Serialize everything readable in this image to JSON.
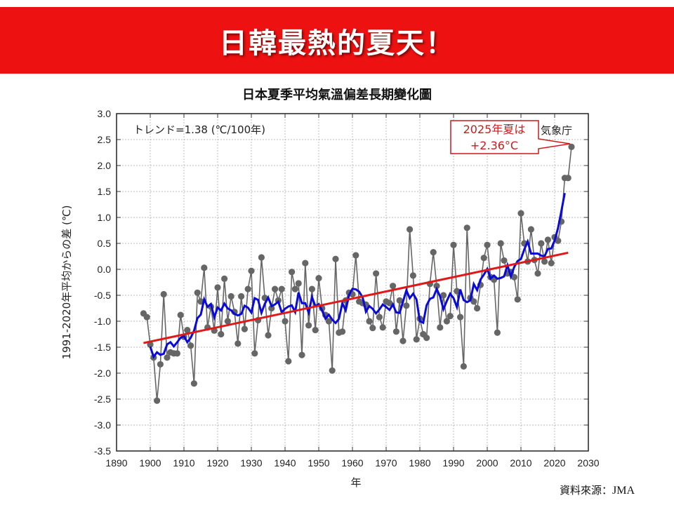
{
  "banner": {
    "title": "日韓最熱的夏天！"
  },
  "source": {
    "label": "資料來源：",
    "org": "JMA"
  },
  "colors": {
    "banner": "#ee1111",
    "annual": "#666666",
    "moving_avg": "#0a0ad8",
    "trend": "#e01818",
    "callout": "#cc1a1a"
  },
  "chart_data": {
    "type": "line",
    "title": "日本夏季平均氣溫偏差長期變化圖",
    "xlabel": "年",
    "ylabel": "1991-2020年平均からの差 (℃)",
    "xlim": [
      1890,
      2030
    ],
    "ylim": [
      -3.5,
      3.0
    ],
    "xticks": [
      "1890",
      "1900",
      "1910",
      "1920",
      "1930",
      "1940",
      "1950",
      "1960",
      "1970",
      "1980",
      "1990",
      "2000",
      "2010",
      "2020",
      "2030"
    ],
    "yticks": [
      "3.0",
      "2.5",
      "2.0",
      "1.5",
      "1.0",
      "0.5",
      "0.0",
      "-0.5",
      "-1.0",
      "-1.5",
      "-2.0",
      "-2.5",
      "-3.0",
      "-3.5"
    ],
    "grid": true,
    "trend_text": "トレンド=1.38 (℃/100年)",
    "credit": "気象庁",
    "callout": {
      "line1": "2025年夏は",
      "line2": "+2.36°C"
    },
    "start_year": 1898,
    "annual": [
      -0.85,
      -0.92,
      -1.45,
      -1.7,
      -2.53,
      -1.83,
      -0.48,
      -1.7,
      -1.6,
      -1.62,
      -1.62,
      -0.88,
      -1.3,
      -1.17,
      -1.47,
      -2.2,
      -0.45,
      -0.62,
      0.03,
      -1.12,
      -0.72,
      -1.18,
      -0.35,
      -1.25,
      -0.18,
      -1.0,
      -0.52,
      -0.82,
      -1.43,
      -0.52,
      -1.15,
      -0.38,
      -0.03,
      -1.62,
      -0.98,
      0.23,
      -0.55,
      -1.27,
      -0.75,
      -0.38,
      -0.6,
      -0.38,
      -1.0,
      -1.77,
      -0.05,
      -0.38,
      -0.27,
      -1.65,
      0.12,
      -1.08,
      -0.38,
      -1.17,
      -0.17,
      -0.75,
      -0.88,
      -1.0,
      -1.95,
      0.2,
      -1.22,
      -1.2,
      -0.6,
      -0.45,
      -0.48,
      0.27,
      -0.62,
      -0.65,
      -0.68,
      -1.0,
      -1.13,
      -0.08,
      -0.92,
      -1.12,
      -0.62,
      -0.65,
      -0.32,
      -1.2,
      -0.6,
      -1.38,
      -0.7,
      0.77,
      -0.12,
      -1.35,
      -0.95,
      -1.25,
      -1.32,
      -0.28,
      0.33,
      -0.32,
      -1.12,
      -0.5,
      -1.0,
      -0.9,
      0.47,
      -0.42,
      -0.92,
      -1.87,
      0.8,
      -0.55,
      -0.62,
      -0.75,
      -0.3,
      0.22,
      0.47,
      -0.15,
      -0.2,
      -1.22,
      0.5,
      0.17,
      -0.08,
      -0.05,
      -0.15,
      -0.58,
      1.08,
      0.5,
      0.15,
      0.77,
      0.18,
      -0.08,
      0.5,
      0.15,
      0.57,
      0.12,
      0.62,
      0.55,
      0.92,
      1.76,
      1.76,
      2.36
    ],
    "moving_average_window": 5,
    "trend": {
      "slope_per_100yr": 1.38,
      "start": [
        1898,
        -1.42
      ],
      "end": [
        2024,
        0.32
      ]
    }
  }
}
